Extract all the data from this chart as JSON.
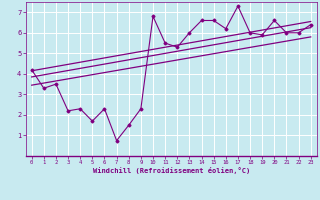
{
  "xlabel": "Windchill (Refroidissement éolien,°C)",
  "background_color": "#c8eaf0",
  "line_color": "#800080",
  "grid_color": "#ffffff",
  "xlim": [
    -0.5,
    23.5
  ],
  "ylim": [
    0,
    7.5
  ],
  "xticks": [
    0,
    1,
    2,
    3,
    4,
    5,
    6,
    7,
    8,
    9,
    10,
    11,
    12,
    13,
    14,
    15,
    16,
    17,
    18,
    19,
    20,
    21,
    22,
    23
  ],
  "yticks": [
    1,
    2,
    3,
    4,
    5,
    6,
    7
  ],
  "scatter_x": [
    0,
    1,
    2,
    3,
    4,
    5,
    6,
    7,
    8,
    9,
    10,
    11,
    12,
    13,
    14,
    15,
    16,
    17,
    18,
    19,
    20,
    21,
    22,
    23
  ],
  "scatter_y": [
    4.2,
    3.3,
    3.5,
    2.2,
    2.3,
    1.7,
    2.3,
    0.75,
    1.5,
    2.3,
    6.8,
    5.5,
    5.3,
    6.0,
    6.6,
    6.6,
    6.2,
    7.3,
    6.0,
    5.9,
    6.6,
    6.0,
    6.0,
    6.4
  ],
  "line1_x": [
    0,
    23
  ],
  "line1_y": [
    4.15,
    6.55
  ],
  "line2_x": [
    0,
    23
  ],
  "line2_y": [
    3.85,
    6.25
  ],
  "line3_x": [
    0,
    23
  ],
  "line3_y": [
    3.45,
    5.8
  ]
}
